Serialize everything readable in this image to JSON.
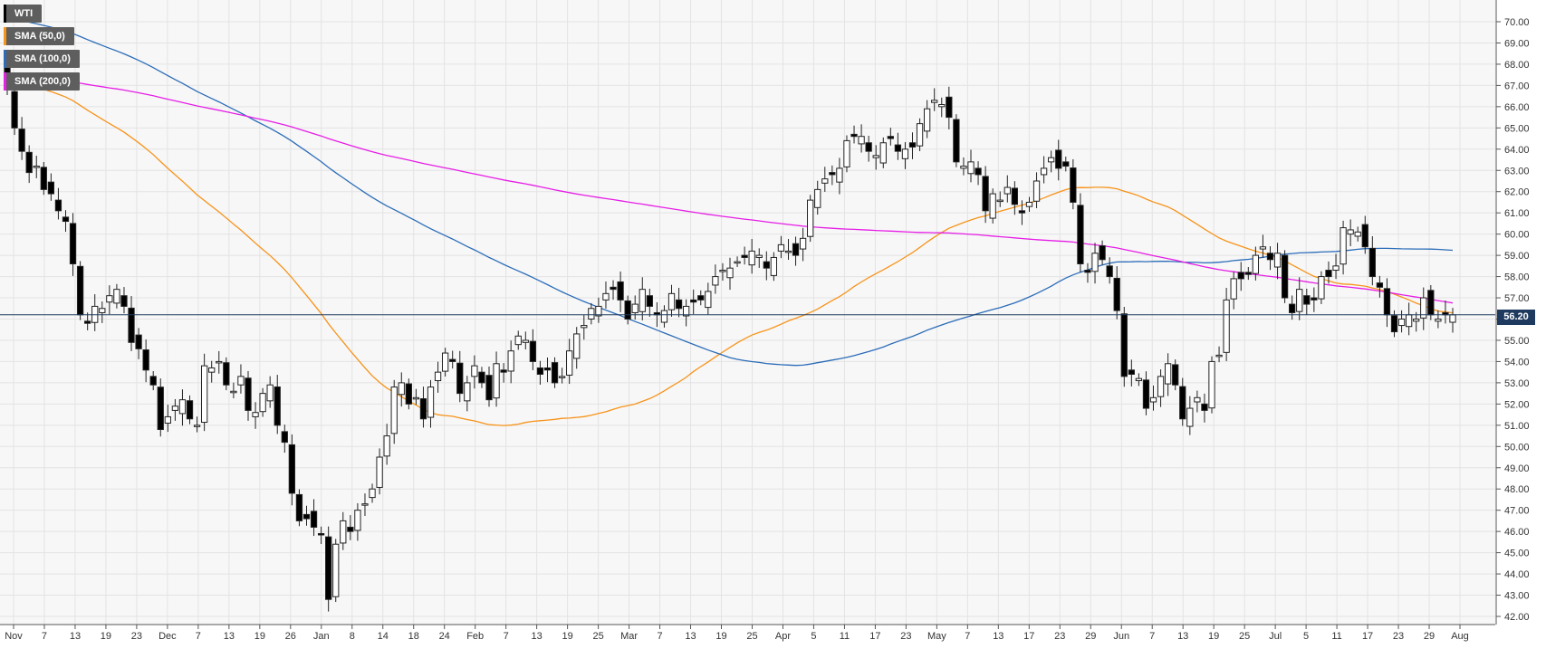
{
  "chart_data": {
    "type": "candlestick",
    "instrument": "WTI",
    "current_price": "56.20",
    "legend": [
      {
        "label": "WTI",
        "color": "#000000"
      },
      {
        "label": "SMA (50,0)",
        "color": "#f7931a"
      },
      {
        "label": "SMA (100,0)",
        "color": "#2b6cb8"
      },
      {
        "label": "SMA (200,0)",
        "color": "#e61ee6"
      }
    ],
    "ylim": [
      42,
      70
    ],
    "y_ticks": [
      "42.00",
      "43.00",
      "44.00",
      "45.00",
      "46.00",
      "47.00",
      "48.00",
      "49.00",
      "50.00",
      "51.00",
      "52.00",
      "53.00",
      "54.00",
      "55.00",
      "56.00",
      "57.00",
      "58.00",
      "59.00",
      "60.00",
      "61.00",
      "62.00",
      "63.00",
      "64.00",
      "65.00",
      "66.00",
      "67.00",
      "68.00",
      "69.00",
      "70.00"
    ],
    "x_ticks": [
      "Nov",
      "7",
      "13",
      "19",
      "23",
      "Dec",
      "7",
      "13",
      "19",
      "26",
      "Jan",
      "8",
      "14",
      "18",
      "24",
      "Feb",
      "7",
      "13",
      "19",
      "25",
      "Mar",
      "7",
      "13",
      "19",
      "25",
      "Apr",
      "5",
      "11",
      "17",
      "23",
      "May",
      "7",
      "13",
      "17",
      "23",
      "29",
      "Jun",
      "7",
      "13",
      "19",
      "25",
      "Jul",
      "5",
      "11",
      "17",
      "23",
      "29",
      "Aug"
    ],
    "closes": [
      66.8,
      65.0,
      63.9,
      62.9,
      63.2,
      62.1,
      61.9,
      61.1,
      60.6,
      58.6,
      56.2,
      55.8,
      56.6,
      56.5,
      57.1,
      57.4,
      56.6,
      54.9,
      54.6,
      53.6,
      52.9,
      50.8,
      51.4,
      51.9,
      52.2,
      51.3,
      51.0,
      53.8,
      53.7,
      54.0,
      52.9,
      52.6,
      53.3,
      51.7,
      51.6,
      52.5,
      52.9,
      51.0,
      50.2,
      47.8,
      46.5,
      46.6,
      46.2,
      45.9,
      42.8,
      45.4,
      46.5,
      46.0,
      47.0,
      47.3,
      48.0,
      49.5,
      50.5,
      52.8,
      53.0,
      52.0,
      52.3,
      51.3,
      52.8,
      53.5,
      54.4,
      54.0,
      52.5,
      53.0,
      53.8,
      53.0,
      52.2,
      53.9,
      53.5,
      54.5,
      55.2,
      55.0,
      54.0,
      53.4,
      53.6,
      53.0,
      53.3,
      54.5,
      55.3,
      55.7,
      56.5,
      56.6,
      57.2,
      57.4,
      56.9,
      56.0,
      56.7,
      57.4,
      56.6,
      56.2,
      56.4,
      57.2,
      56.5,
      56.6,
      56.8,
      56.9,
      57.3,
      58.0,
      58.3,
      58.4,
      58.7,
      58.9,
      59.2,
      59.0,
      58.4,
      58.9,
      59.5,
      59.2,
      59.0,
      59.8,
      61.6,
      62.1,
      62.6,
      62.8,
      63.1,
      64.4,
      64.6,
      64.6,
      63.9,
      63.7,
      64.3,
      64.5,
      63.9,
      64.0,
      64.1,
      65.2,
      65.9,
      66.3,
      66.1,
      65.5,
      63.4,
      63.2,
      63.4,
      62.8,
      61.1,
      61.9,
      61.6,
      62.2,
      61.4,
      61.0,
      61.5,
      62.5,
      63.1,
      63.6,
      63.1,
      63.2,
      61.5,
      58.6,
      58.2,
      59.1,
      58.8,
      58.0,
      56.4,
      53.3,
      53.4,
      53.2,
      51.8,
      52.3,
      53.3,
      53.9,
      52.9,
      51.3,
      51.8,
      52.3,
      51.7,
      54.0,
      54.3,
      56.9,
      57.9,
      57.9,
      58.1,
      59.0,
      59.4,
      58.8,
      59.1,
      57.0,
      56.3,
      57.4,
      56.7,
      56.9,
      58.0,
      58.0,
      58.5,
      60.3,
      60.2,
      60.1,
      59.4,
      58.0,
      57.5,
      56.2,
      55.4,
      56.0,
      56.2,
      56.0,
      57.0,
      56.2,
      56.0,
      56.2,
      56.2
    ],
    "sma_50_start": 67.2,
    "sma_100_start": 70.2,
    "sma_200_start": 67.4
  }
}
